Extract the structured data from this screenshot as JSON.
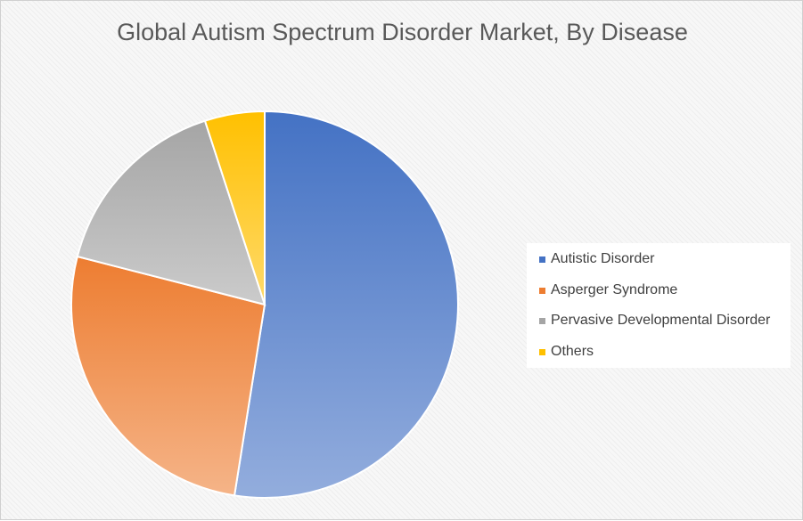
{
  "chart_data": {
    "type": "pie",
    "title": "Global Autism Spectrum Disorder Market, By Disease",
    "categories": [
      "Autistic Disorder",
      "Asperger Syndrome",
      "Pervasive Developmental Disorder",
      "Others"
    ],
    "values": [
      52.5,
      26.5,
      16,
      5
    ],
    "colors": [
      "#4472c4",
      "#ed7d31",
      "#a5a5a5",
      "#ffc000"
    ],
    "legend_position": "right"
  }
}
